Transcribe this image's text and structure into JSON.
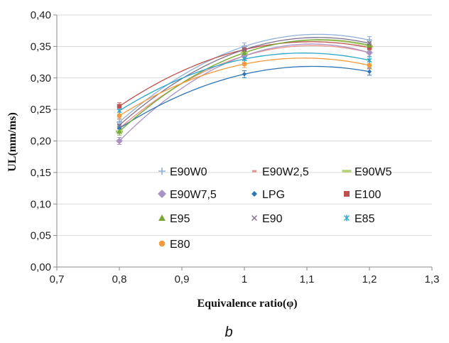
{
  "chart_data": {
    "type": "scatter",
    "xlabel": "Equivalence ratio(φ)",
    "ylabel": "UL(mm/ms)",
    "caption": "b",
    "xlim": [
      0.7,
      1.3
    ],
    "ylim": [
      0.0,
      0.4
    ],
    "x_ticks": [
      "0,7",
      "0,8",
      "0,9",
      "1",
      "1,1",
      "1,2",
      "1,3"
    ],
    "y_ticks": [
      "0,00",
      "0,05",
      "0,10",
      "0,15",
      "0,20",
      "0,25",
      "0,30",
      "0,35",
      "0,40"
    ],
    "x_tick_values": [
      0.7,
      0.8,
      0.9,
      1.0,
      1.1,
      1.2,
      1.3
    ],
    "y_tick_values": [
      0.0,
      0.05,
      0.1,
      0.15,
      0.2,
      0.25,
      0.3,
      0.35,
      0.4
    ],
    "gridlines": "horizontal",
    "legend_position": "inside-lower-center",
    "x": [
      0.8,
      1.0,
      1.2
    ],
    "series": [
      {
        "name": "E90W0",
        "values": [
          0.23,
          0.35,
          0.36
        ],
        "color": "#8fb1d9",
        "marker": "plus"
      },
      {
        "name": "E90W2,5",
        "values": [
          0.22,
          0.335,
          0.34
        ],
        "color": "#e8948c",
        "marker": "dash"
      },
      {
        "name": "E90W5",
        "values": [
          0.215,
          0.34,
          0.35
        ],
        "color": "#b5d27a",
        "marker": "bar"
      },
      {
        "name": "E90W7,5",
        "values": [
          0.2,
          0.335,
          0.34
        ],
        "color": "#a993c4",
        "marker": "diamond"
      },
      {
        "name": "LPG",
        "values": [
          0.22,
          0.306,
          0.31
        ],
        "color": "#2e75b6",
        "marker": "smalldiamond"
      },
      {
        "name": "E100",
        "values": [
          0.255,
          0.345,
          0.348
        ],
        "color": "#c0504d",
        "marker": "square"
      },
      {
        "name": "E95",
        "values": [
          0.215,
          0.34,
          0.352
        ],
        "color": "#77a83a",
        "marker": "triangle"
      },
      {
        "name": "E90",
        "values": [
          0.225,
          0.345,
          0.355
        ],
        "color": "#7f6f8f",
        "marker": "x"
      },
      {
        "name": "E85",
        "values": [
          0.248,
          0.33,
          0.328
        ],
        "color": "#2aa7c9",
        "marker": "star"
      },
      {
        "name": "E80",
        "values": [
          0.24,
          0.322,
          0.32
        ],
        "color": "#f39a3c",
        "marker": "circle"
      }
    ]
  }
}
